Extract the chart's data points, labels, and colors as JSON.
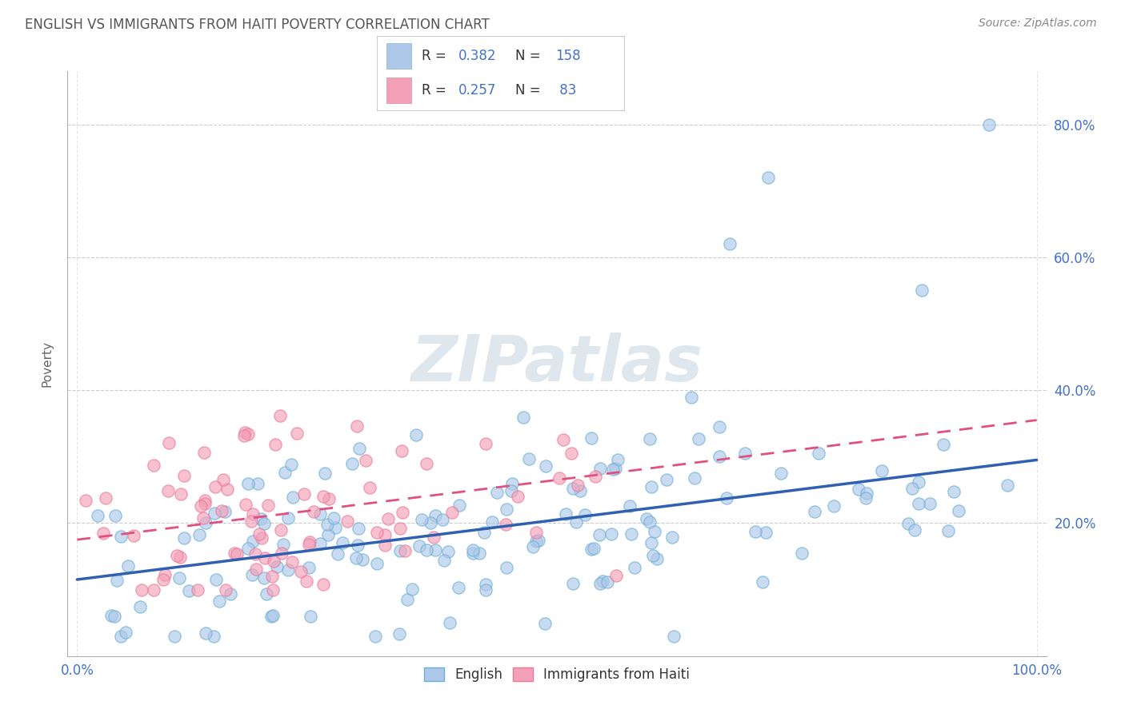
{
  "title": "ENGLISH VS IMMIGRANTS FROM HAITI POVERTY CORRELATION CHART",
  "source": "Source: ZipAtlas.com",
  "ylabel": "Poverty",
  "watermark": "ZIPatlas",
  "watermark_color": "#d0dce8",
  "background_color": "#ffffff",
  "title_color": "#555555",
  "axis_label_color": "#4472c4",
  "english_face_color": "#adc8e8",
  "english_edge_color": "#6baed6",
  "haiti_face_color": "#f4a0b8",
  "haiti_edge_color": "#e8799a",
  "english_line_color": "#3060b0",
  "haiti_line_color": "#e05080",
  "legend_box_english": "#adc8e8",
  "legend_box_haiti": "#f4a0b8",
  "legend_r1": "0.382",
  "legend_n1": "158",
  "legend_r2": "0.257",
  "legend_n2": "83",
  "eng_line_x0": 0.0,
  "eng_line_x1": 1.0,
  "eng_line_y0": 0.115,
  "eng_line_y1": 0.295,
  "haiti_line_x0": 0.0,
  "haiti_line_x1": 1.0,
  "haiti_line_y0": 0.175,
  "haiti_line_y1": 0.355,
  "ylim_min": 0.0,
  "ylim_max": 0.88,
  "xlim_min": -0.01,
  "xlim_max": 1.01
}
